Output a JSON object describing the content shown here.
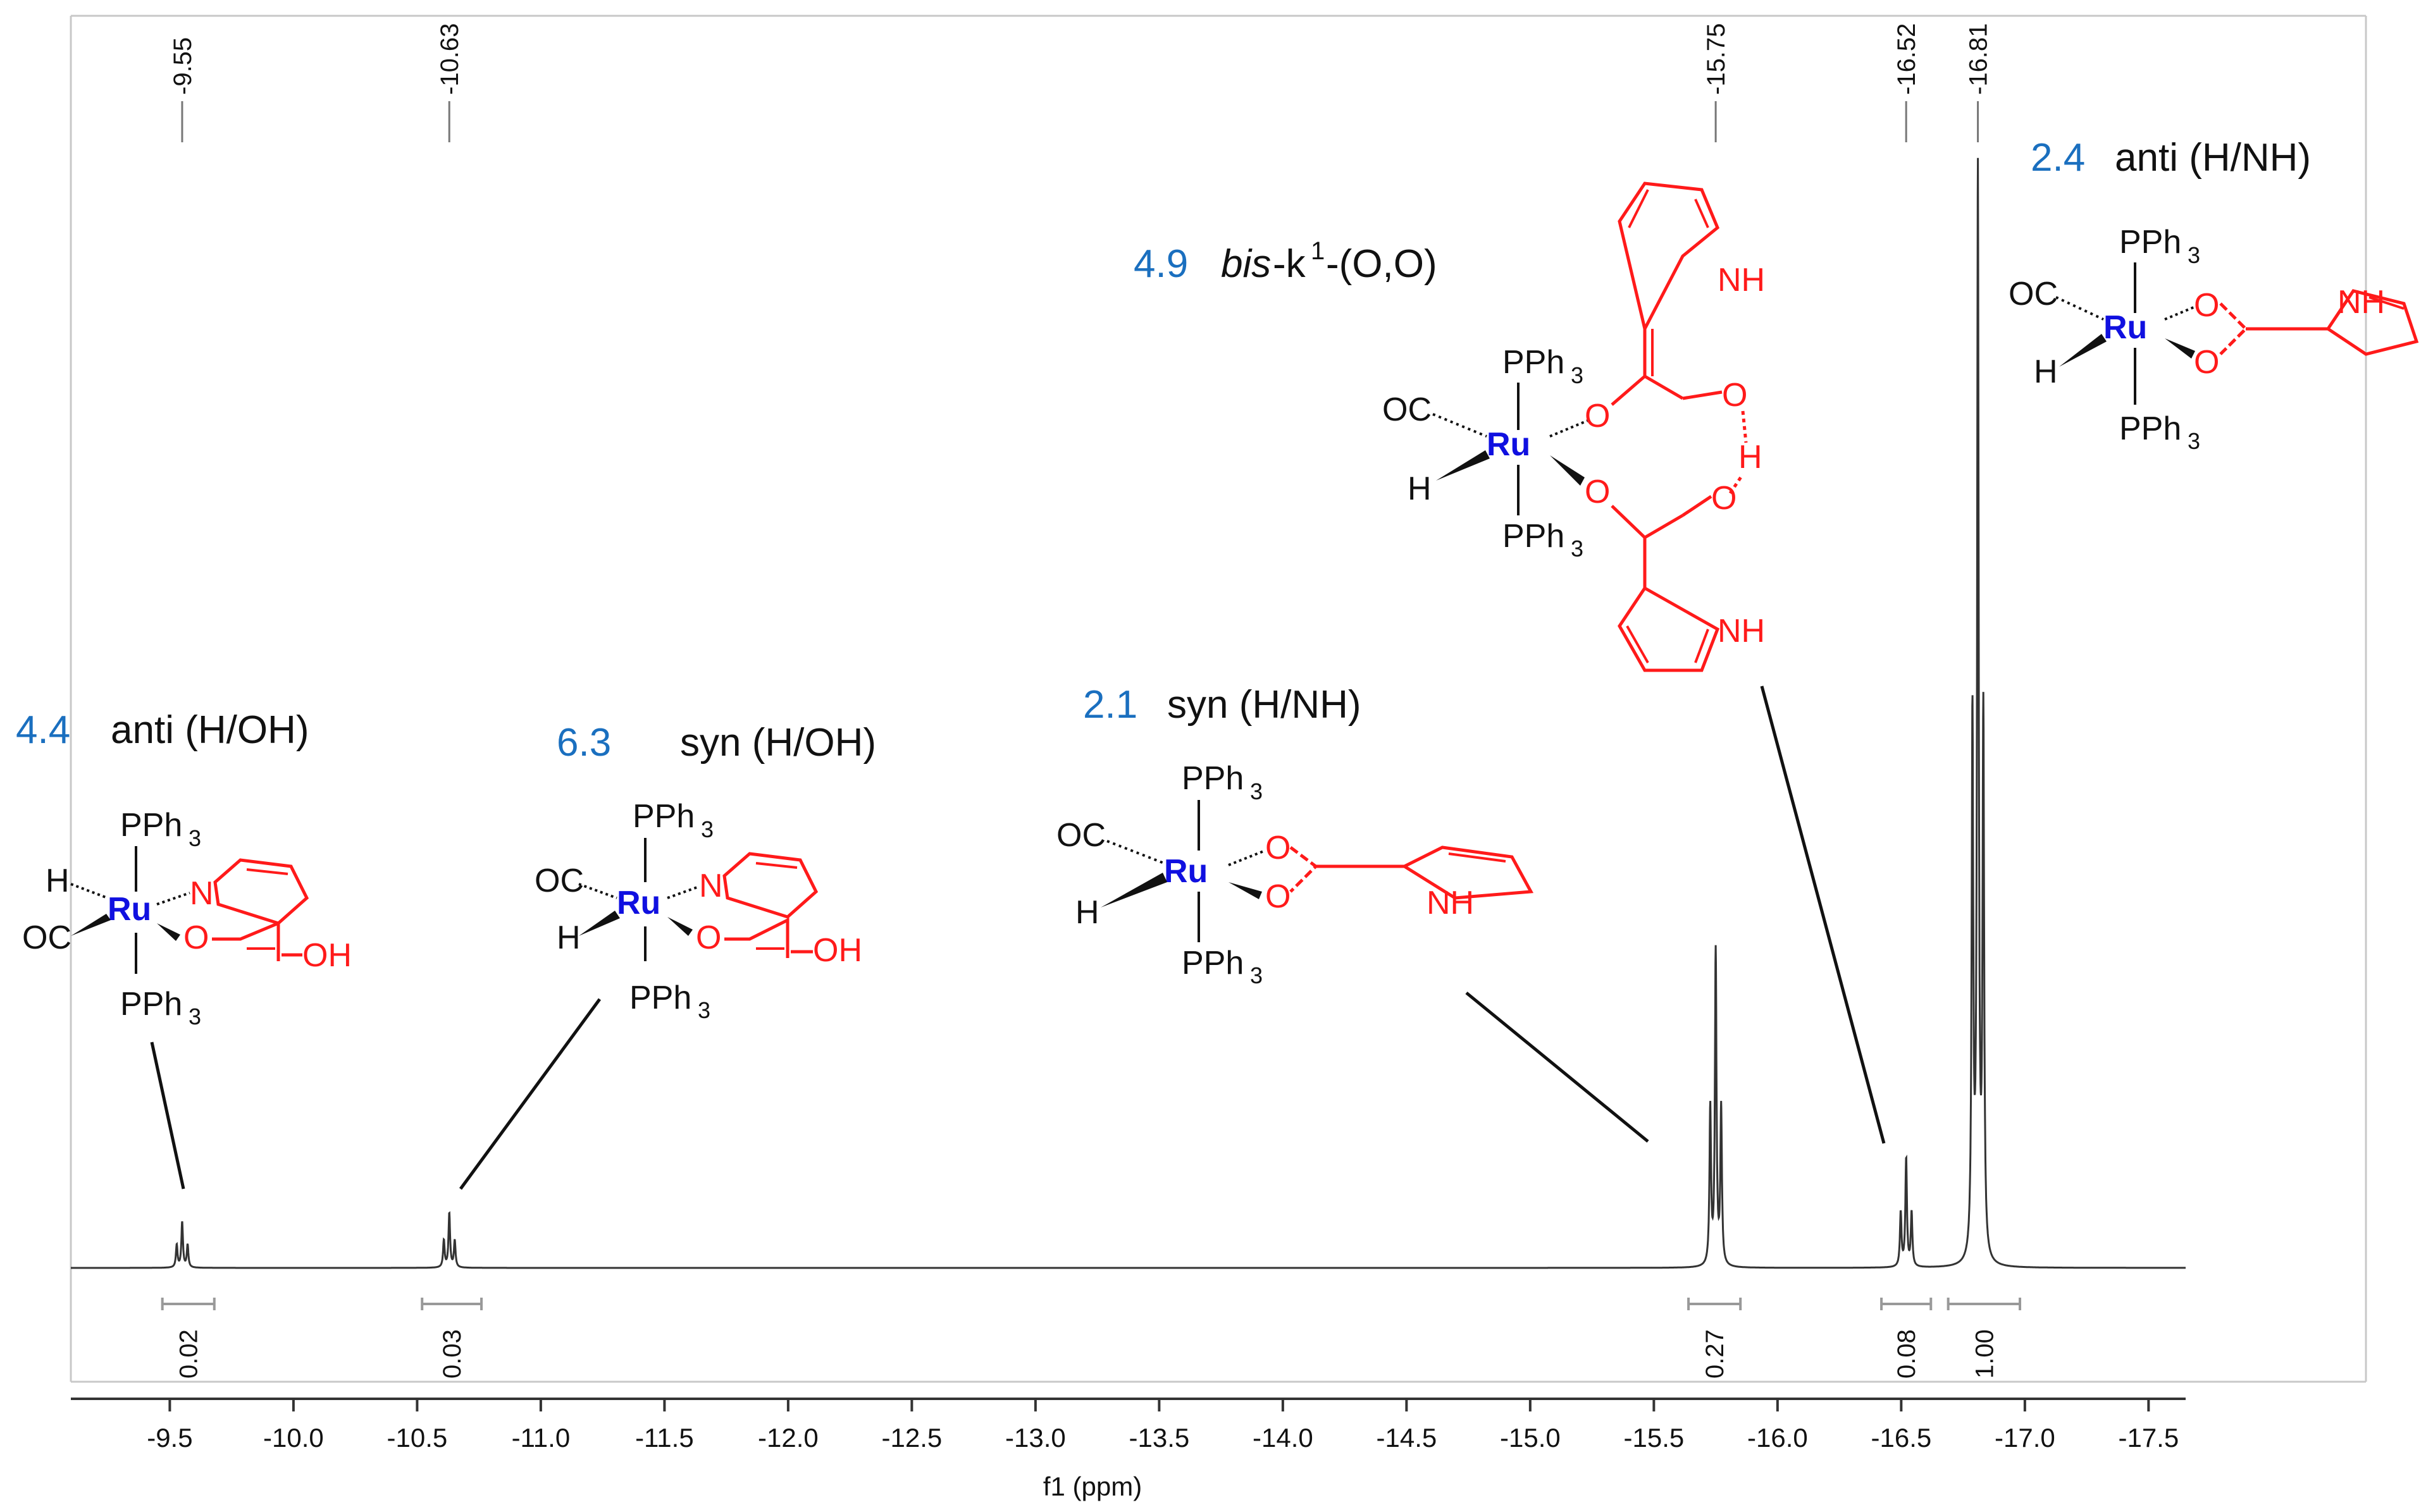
{
  "chart_data": {
    "type": "line",
    "xlabel": "f1 (ppm)",
    "xlim": [
      -9.1,
      -17.65
    ],
    "x_ticks": [
      -9.5,
      -10.0,
      -10.5,
      -11.0,
      -11.5,
      -12.0,
      -12.5,
      -13.0,
      -13.5,
      -14.0,
      -14.5,
      -15.0,
      -15.5,
      -16.0,
      -16.5,
      -17.0,
      -17.5
    ],
    "x_tick_labels": [
      "-9.5",
      "-10.0",
      "-10.5",
      "-11.0",
      "-11.5",
      "-12.0",
      "-12.5",
      "-13.0",
      "-13.5",
      "-14.0",
      "-14.5",
      "-15.0",
      "-15.5",
      "-16.0",
      "-16.5",
      "-17.0",
      "-17.5"
    ],
    "peaks": [
      {
        "ppm": -9.55,
        "label": "-9.55",
        "height": 0.042,
        "multiplet": "triplet"
      },
      {
        "ppm": -10.63,
        "label": "-10.63",
        "height": 0.05,
        "multiplet": "triplet"
      },
      {
        "ppm": -15.75,
        "label": "-15.75",
        "height": 0.29,
        "multiplet": "triplet"
      },
      {
        "ppm": -16.52,
        "label": "-16.52",
        "height": 0.1,
        "multiplet": "triplet"
      },
      {
        "ppm": -16.81,
        "label": "-16.81",
        "height": 1.0,
        "multiplet": "triplet"
      }
    ],
    "integrals": [
      {
        "from": -9.47,
        "to": -9.68,
        "value": "0.02"
      },
      {
        "from": -10.52,
        "to": -10.76,
        "value": "0.03"
      },
      {
        "from": -15.64,
        "to": -15.85,
        "value": "0.27"
      },
      {
        "from": -16.42,
        "to": -16.62,
        "value": "0.08"
      },
      {
        "from": -16.69,
        "to": -16.98,
        "value": "1.00"
      }
    ]
  },
  "annotations": [
    {
      "id": "anti-oh",
      "value": "4.4",
      "label": "anti (H/OH)"
    },
    {
      "id": "syn-oh",
      "value": "6.3",
      "label": "syn (H/OH)"
    },
    {
      "id": "syn-nh",
      "value": "2.1",
      "label": "syn (H/NH)"
    },
    {
      "id": "bis",
      "value": "4.9",
      "label_italic": "bis",
      "label_rest": "-k",
      "label_sup": "1",
      "label_tail": "-(O,O)"
    },
    {
      "id": "anti-nh",
      "value": "2.4",
      "label": "anti (H/NH)"
    }
  ],
  "structure_text": {
    "pph3_main": "PPh",
    "pph3_sub": "3",
    "ru": "Ru",
    "oc": "OC",
    "h": "H",
    "n": "N",
    "o": "O",
    "oh": "OH",
    "nh": "NH"
  },
  "colors": {
    "annotation_value": "#1a6fbf",
    "ligand": "#ff1a1a",
    "metal": "#1010e0",
    "spectrum": "#333333"
  }
}
